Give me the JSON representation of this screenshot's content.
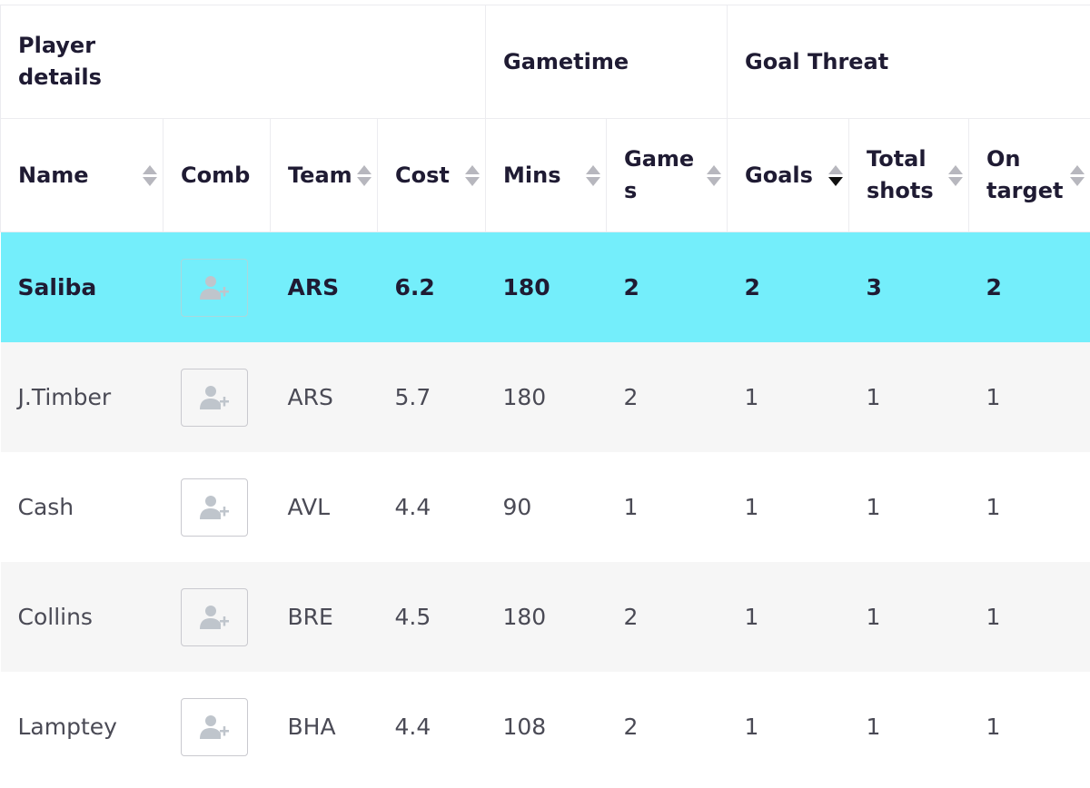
{
  "groups": {
    "player_details": "Player details",
    "gametime": "Gametime",
    "goal_threat": "Goal Threat"
  },
  "columns": {
    "name": "Name",
    "comb": "Comb",
    "team": "Team",
    "cost": "Cost",
    "mins": "Mins",
    "games": "Games",
    "goals": "Goals",
    "total_shots": "Total shots",
    "on_target": "On target"
  },
  "sort": {
    "column": "goals",
    "direction": "descending"
  },
  "icons": {
    "comb_button": "add-player-icon",
    "sort": "sort-arrows-icon"
  },
  "colors": {
    "highlight_row": "#74eefb",
    "alt_row": "#f6f6f6"
  },
  "rows": [
    {
      "name": "Saliba",
      "team": "ARS",
      "cost": "6.2",
      "mins": "180",
      "games": "2",
      "goals": "2",
      "total_shots": "3",
      "on_target": "2"
    },
    {
      "name": "J.Timber",
      "team": "ARS",
      "cost": "5.7",
      "mins": "180",
      "games": "2",
      "goals": "1",
      "total_shots": "1",
      "on_target": "1"
    },
    {
      "name": "Cash",
      "team": "AVL",
      "cost": "4.4",
      "mins": "90",
      "games": "1",
      "goals": "1",
      "total_shots": "1",
      "on_target": "1"
    },
    {
      "name": "Collins",
      "team": "BRE",
      "cost": "4.5",
      "mins": "180",
      "games": "2",
      "goals": "1",
      "total_shots": "1",
      "on_target": "1"
    },
    {
      "name": "Lamptey",
      "team": "BHA",
      "cost": "4.4",
      "mins": "108",
      "games": "2",
      "goals": "1",
      "total_shots": "1",
      "on_target": "1"
    }
  ]
}
